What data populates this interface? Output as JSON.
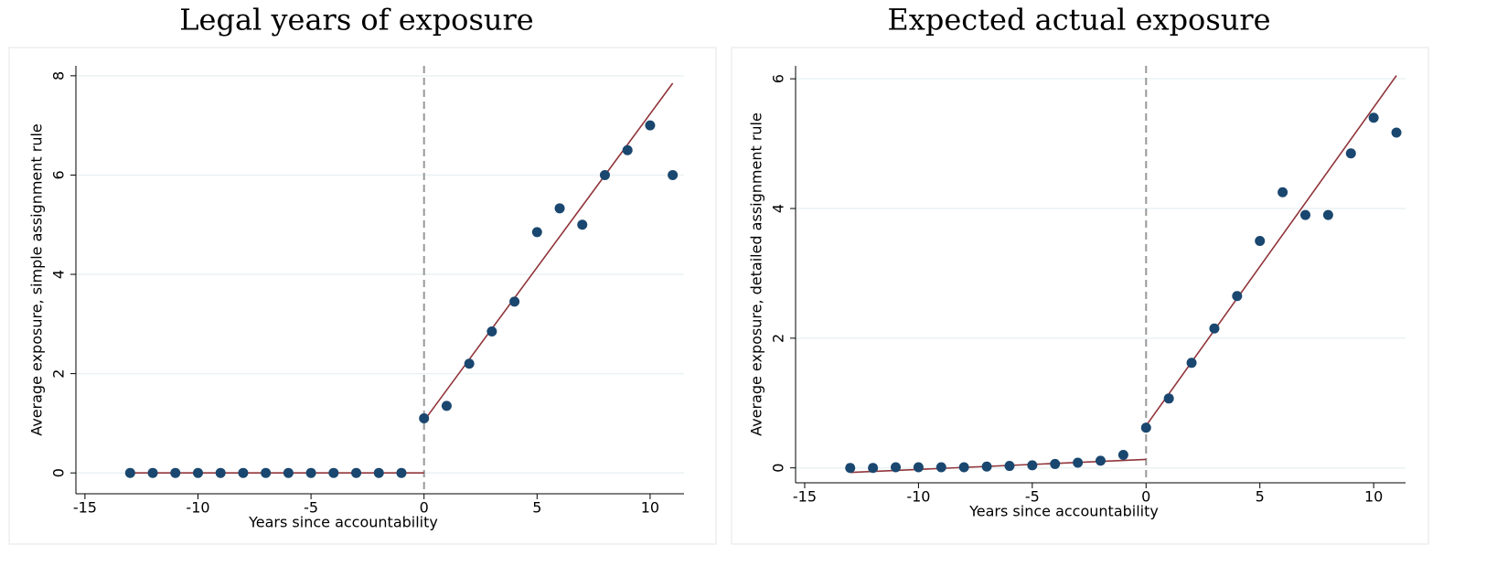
{
  "chart_data": [
    {
      "type": "scatter",
      "title": "Legal years of exposure",
      "x_label": "Years since accountability",
      "y_label": "Average exposure, simple assignment rule",
      "x": [
        -13,
        -12,
        -11,
        -10,
        -9,
        -8,
        -7,
        -6,
        -5,
        -4,
        -3,
        -2,
        -1,
        0,
        1,
        2,
        3,
        4,
        5,
        6,
        7,
        8,
        9,
        10,
        11
      ],
      "values": [
        0,
        0,
        0,
        0,
        0,
        0,
        0,
        0,
        0,
        0,
        0,
        0,
        0,
        1.1,
        1.35,
        2.2,
        2.85,
        3.45,
        4.85,
        5.33,
        5.0,
        6.0,
        6.5,
        7.0,
        6.0
      ],
      "color": "#1a476f",
      "fit_lines": [
        {
          "x": [
            -13,
            0
          ],
          "values": [
            0,
            0
          ]
        },
        {
          "x": [
            0,
            11
          ],
          "values": [
            1.05,
            7.85
          ]
        }
      ],
      "fit_color": "#90353b",
      "vline": 0,
      "xlim": [
        -15.4,
        11.5
      ],
      "ylim": [
        -0.42,
        8.2
      ],
      "xticks": [
        -15,
        -10,
        -5,
        0,
        5,
        10
      ],
      "yticks": [
        0,
        2,
        4,
        6,
        8
      ],
      "grid": true
    },
    {
      "type": "scatter",
      "title": "Expected actual exposure",
      "x_label": "Years since accountability",
      "y_label": "Average exposure, detailed assignment rule",
      "x": [
        -13,
        -12,
        -11,
        -10,
        -9,
        -8,
        -7,
        -6,
        -5,
        -4,
        -3,
        -2,
        -1,
        0,
        1,
        2,
        3,
        4,
        5,
        6,
        7,
        8,
        9,
        10,
        11
      ],
      "values": [
        0,
        0,
        0.01,
        0.01,
        0.01,
        0.01,
        0.02,
        0.03,
        0.04,
        0.06,
        0.08,
        0.11,
        0.2,
        0.62,
        1.07,
        1.62,
        2.15,
        2.65,
        3.5,
        4.25,
        3.9,
        3.9,
        4.85,
        5.4,
        5.17
      ],
      "color": "#1a476f",
      "fit_lines": [
        {
          "x": [
            -13,
            0
          ],
          "values": [
            -0.07,
            0.13
          ]
        },
        {
          "x": [
            0,
            11
          ],
          "values": [
            0.65,
            6.05
          ]
        }
      ],
      "fit_color": "#90353b",
      "vline": 0,
      "xlim": [
        -15.4,
        11.4
      ],
      "ylim": [
        -0.23,
        6.2
      ],
      "xticks": [
        -15,
        -10,
        -5,
        0,
        5,
        10
      ],
      "yticks": [
        0,
        2,
        4,
        6
      ],
      "grid": true
    }
  ]
}
